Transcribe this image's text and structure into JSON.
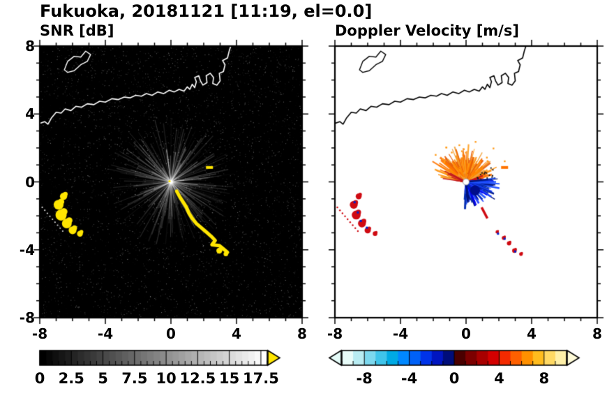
{
  "title": "Fukuoka, 20181121 [11:19, el=0.0]",
  "panels": {
    "snr": {
      "title": "SNR [dB]"
    },
    "velocity": {
      "title": "Doppler Velocity [m/s]"
    }
  },
  "axes": {
    "xlim": [
      -8,
      8
    ],
    "ylim": [
      -8,
      8
    ],
    "xticks": [
      -8,
      -4,
      0,
      4,
      8
    ],
    "yticks": [
      8,
      4,
      0,
      -4,
      -8
    ],
    "minor_tick_step": 1
  },
  "chart_data": [
    {
      "type": "heatmap",
      "title": "SNR [dB]",
      "xlim": [
        -8,
        8
      ],
      "ylim": [
        -8,
        8
      ],
      "xticks": [
        -8,
        -4,
        0,
        4,
        8
      ],
      "yticks": [
        -8,
        -4,
        0,
        4,
        8
      ],
      "grid": false,
      "background_color": "#000000",
      "radar_center": [
        0,
        0
      ],
      "description": "Radar SNR PPI: black noise background, diffuse gray beams radiating from radar site at (0,0), white coastline across the upper part, bright yellow (>18 dB) clutter arc running from (0.3,-0.5) to (3.4,-4.2) and a blob cluster near (-6.6,-2)",
      "features": {
        "clutter_color": "#ffe600",
        "clutter_arc": [
          [
            0.35,
            -0.55
          ],
          [
            0.55,
            -0.9
          ],
          [
            0.75,
            -1.2
          ],
          [
            0.95,
            -1.5
          ],
          [
            1.1,
            -1.85
          ],
          [
            1.3,
            -2.15
          ],
          [
            1.55,
            -2.45
          ],
          [
            1.85,
            -2.7
          ],
          [
            2.15,
            -2.95
          ],
          [
            2.45,
            -3.2
          ],
          [
            2.7,
            -3.45
          ],
          [
            2.5,
            -3.7
          ],
          [
            2.95,
            -3.75
          ],
          [
            3.2,
            -3.95
          ],
          [
            3.45,
            -4.15
          ]
        ],
        "clutter_blobs": [
          [
            -6.55,
            -0.85,
            0.22
          ],
          [
            -6.85,
            -1.35,
            0.3
          ],
          [
            -6.7,
            -1.95,
            0.34
          ],
          [
            -6.35,
            -2.45,
            0.3
          ],
          [
            -6.0,
            -2.85,
            0.24
          ],
          [
            -5.55,
            -3.05,
            0.18
          ],
          [
            2.95,
            -4.05,
            0.18
          ],
          [
            3.35,
            -4.25,
            0.14
          ]
        ],
        "speck": [
          2.35,
          0.85
        ]
      },
      "colorbar": {
        "range": [
          0,
          18
        ],
        "ticks": [
          0,
          2.5,
          5,
          7.5,
          10,
          12.5,
          15,
          17.5
        ],
        "tick_labels": [
          "0",
          "2.5",
          "5",
          "7.5",
          "10",
          "12.5",
          "15",
          "17.5"
        ],
        "minor_step": 0.5,
        "colors": [
          "#000000",
          "#ffffff"
        ],
        "over_arrow_color": "#ffe600"
      }
    },
    {
      "type": "heatmap",
      "title": "Doppler Velocity [m/s]",
      "xlim": [
        -8,
        8
      ],
      "ylim": [
        -8,
        8
      ],
      "xticks": [
        -8,
        -4,
        0,
        4,
        8
      ],
      "yticks": [
        -8,
        -4,
        0,
        4,
        8
      ],
      "grid": false,
      "background_color": "#ffffff",
      "radar_center": [
        0,
        0
      ],
      "description": "Doppler velocity PPI: positive (orange/red, away) fan north of the radar, negative (blue, toward) fan east-southeast of the radar, black coastline, scattered red/blue ground-clutter echoes southwest and southeast",
      "features": {
        "away_fan": {
          "angles_deg": [
            15,
            170
          ],
          "max_range": 2.6,
          "colors": [
            "#ff8c00",
            "#ff9d1c",
            "#ff7400",
            "#f2a33c",
            "#e85d04"
          ]
        },
        "toward_fan": {
          "angles_deg": [
            -95,
            5
          ],
          "max_range": 1.9,
          "colors": [
            "#0000ee",
            "#1e3fff",
            "#0029b0",
            "#00127a",
            "#2255ff"
          ]
        },
        "ground_marks_red": [
          [
            -6.55,
            -0.85,
            0.18
          ],
          [
            -6.85,
            -1.35,
            0.24
          ],
          [
            -6.7,
            -1.95,
            0.27
          ],
          [
            -6.35,
            -2.45,
            0.24
          ],
          [
            -6.0,
            -2.85,
            0.19
          ],
          [
            -5.55,
            -3.05,
            0.14
          ],
          [
            1.9,
            -2.95,
            0.1
          ],
          [
            2.3,
            -3.3,
            0.12
          ],
          [
            2.62,
            -3.62,
            0.13
          ],
          [
            2.95,
            -4.05,
            0.14
          ],
          [
            3.35,
            -4.25,
            0.11
          ]
        ],
        "ground_marks_blue": [
          [
            -6.8,
            -1.2
          ],
          [
            -6.6,
            -1.8
          ],
          [
            -6.42,
            -2.3
          ],
          [
            -6.05,
            -2.7
          ],
          [
            2.35,
            -3.35
          ],
          [
            3.0,
            -4.1
          ],
          [
            1.95,
            -3.05
          ]
        ],
        "red_streak": [
          [
            0.95,
            -1.5
          ],
          [
            1.3,
            -2.15
          ]
        ],
        "speck": [
          2.35,
          0.85
        ],
        "site_marker_color": "#ffffff"
      },
      "colorbar": {
        "range": [
          -10,
          10
        ],
        "ticks": [
          -8,
          -4,
          0,
          4,
          8
        ],
        "tick_labels": [
          "-8",
          "-4",
          "0",
          "4",
          "8"
        ],
        "minor_step": 1,
        "colors": [
          "#e8fcf9",
          "#b8ecf2",
          "#7cd8ee",
          "#3fc4ea",
          "#00aae4",
          "#0088ff",
          "#0061f7",
          "#0033e8",
          "#0015c0",
          "#000d7a",
          "#4a0000",
          "#7c0000",
          "#a80000",
          "#d40000",
          "#f42a00",
          "#ff6000",
          "#ff9000",
          "#ffbc1e",
          "#ffd964",
          "#fff0a8"
        ],
        "under_arrow_color": "#e4fbf8",
        "over_arrow_color": "#fffbd8"
      }
    }
  ],
  "overlays": {
    "coastline": [
      [
        -8,
        3.45
      ],
      [
        -7.7,
        3.55
      ],
      [
        -7.5,
        3.4
      ],
      [
        -7.3,
        3.75
      ],
      [
        -7.0,
        4.1
      ],
      [
        -6.7,
        4.05
      ],
      [
        -6.45,
        4.3
      ],
      [
        -6.1,
        4.2
      ],
      [
        -5.8,
        4.45
      ],
      [
        -5.45,
        4.4
      ],
      [
        -5.1,
        4.6
      ],
      [
        -4.7,
        4.55
      ],
      [
        -4.35,
        4.75
      ],
      [
        -4.0,
        4.7
      ],
      [
        -3.6,
        4.9
      ],
      [
        -3.2,
        4.85
      ],
      [
        -2.85,
        5.0
      ],
      [
        -2.5,
        4.95
      ],
      [
        -2.15,
        5.1
      ],
      [
        -1.8,
        5.05
      ],
      [
        -1.5,
        5.2
      ],
      [
        -1.15,
        5.1
      ],
      [
        -0.8,
        5.3
      ],
      [
        -0.45,
        5.2
      ],
      [
        -0.1,
        5.4
      ],
      [
        0.2,
        5.3
      ],
      [
        0.5,
        5.45
      ],
      [
        0.8,
        5.35
      ],
      [
        1.0,
        5.6
      ],
      [
        1.15,
        5.45
      ],
      [
        1.3,
        5.75
      ],
      [
        1.45,
        5.55
      ],
      [
        1.55,
        5.9
      ],
      [
        1.45,
        6.15
      ],
      [
        1.7,
        6.25
      ],
      [
        1.8,
        5.95
      ],
      [
        1.95,
        5.7
      ],
      [
        2.2,
        5.85
      ],
      [
        2.15,
        6.25
      ],
      [
        2.4,
        6.4
      ],
      [
        2.6,
        6.15
      ],
      [
        2.55,
        5.8
      ],
      [
        2.8,
        5.7
      ],
      [
        3.0,
        5.95
      ],
      [
        2.95,
        6.4
      ],
      [
        3.2,
        6.5
      ],
      [
        3.3,
        6.9
      ],
      [
        3.15,
        7.15
      ],
      [
        3.45,
        7.3
      ],
      [
        3.55,
        7.7
      ],
      [
        3.65,
        8.0
      ]
    ],
    "island": [
      [
        -6.5,
        6.6
      ],
      [
        -6.3,
        7.1
      ],
      [
        -5.9,
        7.4
      ],
      [
        -5.5,
        7.35
      ],
      [
        -5.2,
        7.7
      ],
      [
        -4.9,
        7.5
      ],
      [
        -5.1,
        7.1
      ],
      [
        -5.5,
        6.9
      ],
      [
        -5.9,
        6.55
      ],
      [
        -6.3,
        6.45
      ]
    ],
    "dotted_track": {
      "from": [
        -7.85,
        -1.5
      ],
      "to": [
        -6.6,
        -2.9
      ],
      "dots": 9
    }
  }
}
